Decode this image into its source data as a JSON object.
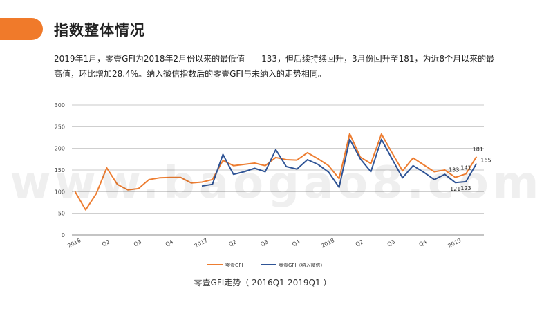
{
  "page": {
    "title": "指数整体情况",
    "intro": "2019年1月，零壹GFI为2018年2月份以来的最低值——133，但后续持续回升，3月份回升至181，为近8个月以来的最高值，环比增加28.4%。纳入微信指数后的零壹GFI与未纳入的走势相同。",
    "watermark": "www.baogao8.com",
    "caption": "零壹GFI走势（ 2016Q1-2019Q1 ）"
  },
  "colors": {
    "accent": "#f07a2a",
    "orange": "#ed7d31",
    "navy": "#2f5496"
  },
  "chart_data": {
    "type": "line",
    "ylim": [
      0,
      300
    ],
    "yticks": [
      0,
      50,
      100,
      150,
      200,
      250,
      300
    ],
    "x_count": 39,
    "x_ticks": [
      {
        "i": 0,
        "label": "2016"
      },
      {
        "i": 3,
        "label": "Q2"
      },
      {
        "i": 6,
        "label": "Q3"
      },
      {
        "i": 9,
        "label": "Q4"
      },
      {
        "i": 12,
        "label": "2017"
      },
      {
        "i": 15,
        "label": "Q2"
      },
      {
        "i": 18,
        "label": "Q3"
      },
      {
        "i": 21,
        "label": "Q4"
      },
      {
        "i": 24,
        "label": "2018"
      },
      {
        "i": 27,
        "label": "Q2"
      },
      {
        "i": 30,
        "label": "Q3"
      },
      {
        "i": 33,
        "label": "Q4"
      },
      {
        "i": 36,
        "label": "2019"
      }
    ],
    "grid": true,
    "legend_position": "bottom",
    "series": [
      {
        "name": "零壹GFI",
        "color": "#ed7d31",
        "start": 0,
        "values": [
          100,
          58,
          95,
          155,
          117,
          104,
          107,
          128,
          132,
          133,
          133,
          120,
          122,
          128,
          172,
          160,
          163,
          166,
          160,
          179,
          174,
          173,
          190,
          176,
          160,
          130,
          234,
          180,
          165,
          233,
          190,
          148,
          178,
          162,
          146,
          150,
          133,
          141,
          181
        ]
      },
      {
        "name": "零壹GFI（纳入微信）",
        "color": "#2f5496",
        "start": 12,
        "values": [
          113,
          117,
          186,
          140,
          146,
          154,
          146,
          197,
          158,
          152,
          174,
          163,
          145,
          110,
          221,
          176,
          146,
          221,
          176,
          132,
          160,
          145,
          128,
          140,
          121,
          123,
          165
        ]
      }
    ],
    "data_labels": [
      {
        "series": 0,
        "i": 36,
        "text": "133"
      },
      {
        "series": 0,
        "i": 37,
        "text": "141"
      },
      {
        "series": 0,
        "i": 38,
        "text": "181"
      },
      {
        "series": 1,
        "i": 36,
        "text": "121"
      },
      {
        "series": 1,
        "i": 37,
        "text": "123"
      },
      {
        "series": 1,
        "i": 38,
        "text": "165"
      }
    ]
  }
}
